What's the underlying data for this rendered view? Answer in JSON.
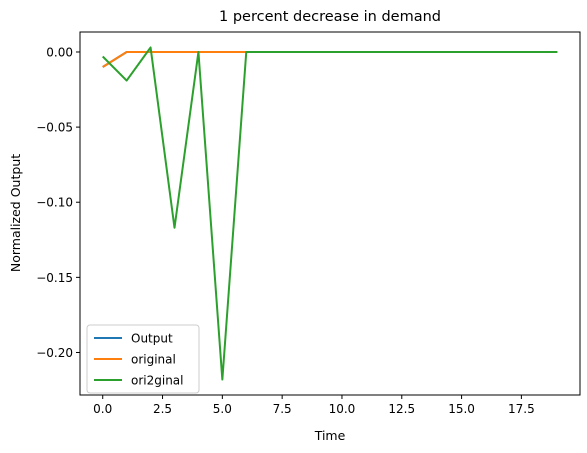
{
  "chart_data": {
    "type": "line",
    "title": "1 percent decrease in demand",
    "xlabel": "Time",
    "ylabel": "Normalized Output",
    "xlim": [
      -0.95,
      19.95
    ],
    "ylim": [
      -0.2283,
      0.0133
    ],
    "xticks": [
      0.0,
      2.5,
      5.0,
      7.5,
      10.0,
      12.5,
      15.0,
      17.5
    ],
    "xtick_labels": [
      "0.0",
      "2.5",
      "5.0",
      "7.5",
      "10.0",
      "12.5",
      "15.0",
      "17.5"
    ],
    "yticks": [
      0.0,
      -0.05,
      -0.1,
      -0.15,
      -0.2
    ],
    "ytick_labels": [
      "0.00",
      "−0.05",
      "−0.10",
      "−0.15",
      "−0.20"
    ],
    "grid": false,
    "legend_position": "lower-left",
    "x": [
      0,
      1,
      2,
      3,
      4,
      5,
      6,
      7,
      8,
      9,
      10,
      11,
      12,
      13,
      14,
      15,
      16,
      17,
      18,
      19
    ],
    "series": [
      {
        "name": "Output",
        "color": "#1f77b4",
        "values": [
          -0.01,
          0,
          0,
          0,
          0,
          0,
          0,
          0,
          0,
          0,
          0,
          0,
          0,
          0,
          0,
          0,
          0,
          0,
          0,
          0
        ]
      },
      {
        "name": "original",
        "color": "#ff7f0e",
        "values": [
          -0.01,
          0,
          0,
          0,
          0,
          0,
          0,
          0,
          0,
          0,
          0,
          0,
          0,
          0,
          0,
          0,
          0,
          0,
          0,
          0
        ]
      },
      {
        "name": "ori2ginal",
        "color": "#2ca02c",
        "values": [
          -0.003,
          -0.019,
          0.003,
          -0.117,
          0.0,
          -0.218,
          0,
          0,
          0,
          0,
          0,
          0,
          0,
          0,
          0,
          0,
          0,
          0,
          0,
          0
        ]
      }
    ]
  }
}
